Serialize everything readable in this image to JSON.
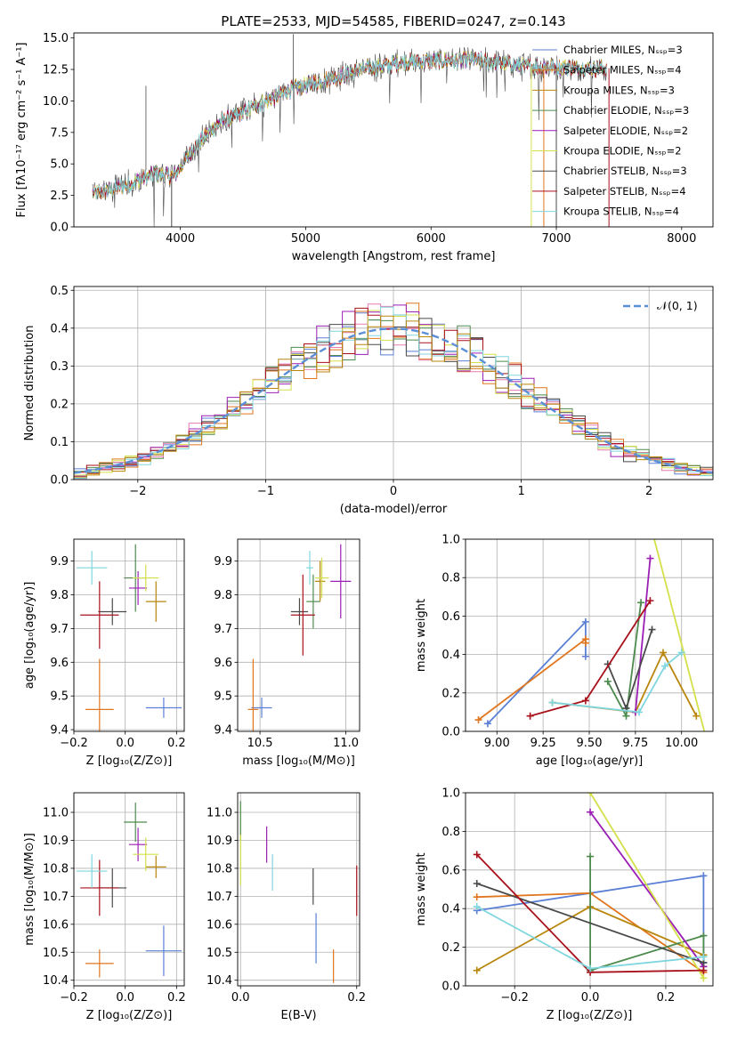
{
  "colors": {
    "palette": [
      "#5b7fd6",
      "#e0761e",
      "#b8860b",
      "#4e8b4e",
      "#9b1fb5",
      "#d4e04a",
      "#4a4a4a",
      "#a8111b",
      "#7fd6de"
    ],
    "midpalette": [
      "#5b7fd6",
      "#e0761e",
      "#4e8b4e",
      "#9b1fb5",
      "#e87ab0",
      "#d4e04a",
      "#4a4a4a",
      "#a8111b",
      "#7fd6de",
      "#b8860b"
    ]
  },
  "chart_data": [
    {
      "type": "line",
      "title": "PLATE=2533, MJD=54585, FIBERID=0247, z=0.143",
      "xlabel": "wavelength [Angstrom, rest frame]",
      "ylabel": "Flux [fλ10⁻¹⁷ erg cm⁻² s⁻¹ A⁻¹]",
      "xlim": [
        3150,
        8250
      ],
      "ylim": [
        0,
        15.4
      ],
      "xticks": [
        "4000",
        "5000",
        "6000",
        "7000",
        "8000"
      ],
      "yticks": [
        "0.0",
        "2.5",
        "5.0",
        "7.5",
        "10.0",
        "12.5",
        "15.0"
      ],
      "xtick_values": [
        4000,
        5000,
        6000,
        7000,
        8000
      ],
      "ytick_values": [
        0,
        2.5,
        5,
        7.5,
        10,
        12.5,
        15
      ],
      "legend_position": "top-right",
      "series": [
        {
          "name": "Chabrier MILES, Nₛₛₚ=3"
        },
        {
          "name": "Salpeter MILES, Nₛₛₚ=4"
        },
        {
          "name": "Kroupa MILES, Nₛₛₚ=3"
        },
        {
          "name": "Chabrier ELODIE, Nₛₛₚ=3"
        },
        {
          "name": "Salpeter ELODIE, Nₛₛₚ=2"
        },
        {
          "name": "Kroupa ELODIE, Nₛₛₚ=2"
        },
        {
          "name": "Chabrier STELIB, Nₛₛₚ=3"
        },
        {
          "name": "Salpeter STELIB, Nₛₛₚ=4"
        },
        {
          "name": "Kroupa STELIB, Nₛₛₚ=4"
        }
      ],
      "continuum": {
        "x": [
          3300,
          3500,
          3800,
          3950,
          4100,
          4300,
          4600,
          4900,
          5200,
          5500,
          5800,
          6100,
          6400,
          6800,
          7000,
          7300
        ],
        "y": [
          2.6,
          3.1,
          4.2,
          4.0,
          6.2,
          8.2,
          9.6,
          11.0,
          11.8,
          12.6,
          13.1,
          13.2,
          13.2,
          12.7,
          12.7,
          12.6
        ]
      }
    },
    {
      "type": "bar",
      "xlabel": "(data-model)/error",
      "ylabel": "Normed distribution",
      "xlim": [
        -2.5,
        2.5
      ],
      "ylim": [
        0,
        0.51
      ],
      "xticks": [
        "−2",
        "−1",
        "0",
        "1",
        "2"
      ],
      "yticks": [
        "0.0",
        "0.1",
        "0.2",
        "0.3",
        "0.4",
        "0.5"
      ],
      "xtick_values": [
        -2,
        -1,
        0,
        1,
        2
      ],
      "ytick_values": [
        0,
        0.1,
        0.2,
        0.3,
        0.4,
        0.5
      ],
      "grid": true,
      "legend_position": "top-right",
      "series": [
        {
          "name": "𝒩(0, 1)",
          "type": "gaussian",
          "mean": 0,
          "sigma": 1
        }
      ],
      "bin_width": 0.1
    },
    {
      "type": "scatter",
      "xlabel": "Z [log₁₀(Z/Z⊙)]",
      "ylabel": "age  [log₁₀(age/yr)]",
      "xlim": [
        -0.2,
        0.23
      ],
      "ylim": [
        9.395,
        9.965
      ],
      "xticks": [
        "−0.2",
        "0.0",
        "0.2"
      ],
      "yticks": [
        "9.4",
        "9.5",
        "9.6",
        "9.7",
        "9.8",
        "9.9"
      ],
      "xtick_values": [
        -0.2,
        0,
        0.2
      ],
      "ytick_values": [
        9.4,
        9.5,
        9.6,
        9.7,
        9.8,
        9.9
      ],
      "grid": true,
      "points": [
        {
          "x": 0.15,
          "y": 9.465,
          "xerr": 0.07,
          "yerr": 0.03,
          "c": 0
        },
        {
          "x": -0.1,
          "y": 9.46,
          "xerr": 0.055,
          "yerr": 0.15,
          "c": 1
        },
        {
          "x": 0.12,
          "y": 9.78,
          "xerr": 0.04,
          "yerr": 0.06,
          "c": 2
        },
        {
          "x": 0.04,
          "y": 9.85,
          "xerr": 0.045,
          "yerr": 0.1,
          "c": 3
        },
        {
          "x": 0.05,
          "y": 9.82,
          "xerr": 0.035,
          "yerr": 0.05,
          "c": 4
        },
        {
          "x": 0.08,
          "y": 9.85,
          "xerr": 0.05,
          "yerr": 0.04,
          "c": 5
        },
        {
          "x": -0.05,
          "y": 9.75,
          "xerr": 0.055,
          "yerr": 0.04,
          "c": 6
        },
        {
          "x": -0.1,
          "y": 9.74,
          "xerr": 0.075,
          "yerr": 0.1,
          "c": 7
        },
        {
          "x": -0.13,
          "y": 9.88,
          "xerr": 0.06,
          "yerr": 0.05,
          "c": 8
        }
      ]
    },
    {
      "type": "scatter",
      "xlabel": "mass [log₁₀(M/M⊙)]",
      "xlim": [
        10.37,
        11.08
      ],
      "ylim": [
        9.395,
        9.965
      ],
      "xticks": [
        "10.5",
        "11.0"
      ],
      "yticks": [
        "9.4",
        "9.5",
        "9.6",
        "9.7",
        "9.8",
        "9.9"
      ],
      "xtick_values": [
        10.5,
        11.0
      ],
      "ytick_values": [
        9.4,
        9.5,
        9.6,
        9.7,
        9.8,
        9.9
      ],
      "grid": true,
      "points": [
        {
          "x": 10.51,
          "y": 9.465,
          "xerr": 0.06,
          "yerr": 0.03,
          "c": 0
        },
        {
          "x": 10.46,
          "y": 9.46,
          "xerr": 0.03,
          "yerr": 0.15,
          "c": 1
        },
        {
          "x": 10.85,
          "y": 9.84,
          "xerr": 0.03,
          "yerr": 0.06,
          "c": 2
        },
        {
          "x": 10.81,
          "y": 9.78,
          "xerr": 0.04,
          "yerr": 0.08,
          "c": 3
        },
        {
          "x": 10.97,
          "y": 9.84,
          "xerr": 0.06,
          "yerr": 0.11,
          "c": 4
        },
        {
          "x": 10.86,
          "y": 9.85,
          "xerr": 0.04,
          "yerr": 0.06,
          "c": 5
        },
        {
          "x": 10.73,
          "y": 9.75,
          "xerr": 0.05,
          "yerr": 0.04,
          "c": 6
        },
        {
          "x": 10.75,
          "y": 9.74,
          "xerr": 0.07,
          "yerr": 0.12,
          "c": 7
        },
        {
          "x": 10.79,
          "y": 9.88,
          "xerr": 0.02,
          "yerr": 0.05,
          "c": 8
        }
      ]
    },
    {
      "type": "line",
      "xlabel": "age  [log₁₀(age/yr)]",
      "ylabel": "mass weight",
      "xlim": [
        8.83,
        10.17
      ],
      "ylim": [
        0,
        1.0
      ],
      "xticks": [
        "9.00",
        "9.25",
        "9.50",
        "9.75",
        "10.00"
      ],
      "yticks": [
        "0.0",
        "0.2",
        "0.4",
        "0.6",
        "0.8",
        "1.0"
      ],
      "xtick_values": [
        9.0,
        9.25,
        9.5,
        9.75,
        10.0
      ],
      "ytick_values": [
        0,
        0.2,
        0.4,
        0.6,
        0.8,
        1.0
      ],
      "grid": true,
      "series": [
        {
          "c": 0,
          "x": [
            8.95,
            9.48,
            9.48
          ],
          "y": [
            0.04,
            0.57,
            0.39
          ]
        },
        {
          "c": 1,
          "x": [
            8.9,
            9.48,
            9.48
          ],
          "y": [
            0.06,
            0.48,
            0.46
          ]
        },
        {
          "c": 9,
          "x": [
            9.3,
            9.75,
            9.9,
            10.08
          ],
          "y": [
            0.15,
            0.1,
            0.41,
            0.08
          ]
        },
        {
          "c": 2,
          "x": [
            9.6,
            9.7,
            9.78
          ],
          "y": [
            0.26,
            0.08,
            0.67
          ]
        },
        {
          "c": 3,
          "x": [
            9.75,
            9.83
          ],
          "y": [
            0.1,
            0.9
          ]
        },
        {
          "c": 5,
          "x": [
            9.83,
            10.15
          ],
          "y": [
            1.08,
            -0.1
          ]
        },
        {
          "c": 6,
          "x": [
            9.6,
            9.7,
            9.84
          ],
          "y": [
            0.35,
            0.12,
            0.53
          ]
        },
        {
          "c": 7,
          "x": [
            9.18,
            9.48,
            9.83
          ],
          "y": [
            0.08,
            0.16,
            0.68
          ]
        },
        {
          "c": 8,
          "x": [
            9.3,
            9.77,
            9.91,
            10.0
          ],
          "y": [
            0.15,
            0.1,
            0.34,
            0.41
          ]
        }
      ]
    },
    {
      "type": "scatter",
      "xlabel": "Z [log₁₀(Z/Z⊙)]",
      "ylabel": "mass [log₁₀(M/M⊙)]",
      "xlim": [
        -0.2,
        0.23
      ],
      "ylim": [
        10.38,
        11.07
      ],
      "xticks": [
        "−0.2",
        "0.0",
        "0.2"
      ],
      "yticks": [
        "10.4",
        "10.5",
        "10.6",
        "10.7",
        "10.8",
        "10.9",
        "11.0"
      ],
      "xtick_values": [
        -0.2,
        0,
        0.2
      ],
      "ytick_values": [
        10.4,
        10.5,
        10.6,
        10.7,
        10.8,
        10.9,
        11.0
      ],
      "grid": true,
      "points": [
        {
          "x": 0.15,
          "y": 10.505,
          "xerr": 0.07,
          "yerr": 0.09,
          "c": 0
        },
        {
          "x": -0.1,
          "y": 10.46,
          "xerr": 0.055,
          "yerr": 0.05,
          "c": 1
        },
        {
          "x": 0.12,
          "y": 10.805,
          "xerr": 0.04,
          "yerr": 0.04,
          "c": 2
        },
        {
          "x": 0.04,
          "y": 10.965,
          "xerr": 0.045,
          "yerr": 0.07,
          "c": 3
        },
        {
          "x": 0.05,
          "y": 10.885,
          "xerr": 0.035,
          "yerr": 0.06,
          "c": 4
        },
        {
          "x": 0.08,
          "y": 10.85,
          "xerr": 0.05,
          "yerr": 0.06,
          "c": 5
        },
        {
          "x": -0.05,
          "y": 10.73,
          "xerr": 0.055,
          "yerr": 0.07,
          "c": 6
        },
        {
          "x": -0.1,
          "y": 10.73,
          "xerr": 0.075,
          "yerr": 0.1,
          "c": 7
        },
        {
          "x": -0.13,
          "y": 10.79,
          "xerr": 0.06,
          "yerr": 0.06,
          "c": 8
        }
      ]
    },
    {
      "type": "scatter",
      "xlabel": "E(B-V)",
      "xlim": [
        -0.005,
        0.205
      ],
      "ylim": [
        10.38,
        11.07
      ],
      "xticks": [
        "0.0",
        "0.2"
      ],
      "yticks": [
        "10.4",
        "10.5",
        "10.6",
        "10.7",
        "10.8",
        "10.9",
        "11.0"
      ],
      "xtick_values": [
        0,
        0.2
      ],
      "ytick_values": [
        10.4,
        10.5,
        10.6,
        10.7,
        10.8,
        10.9,
        11.0
      ],
      "grid": true,
      "points": [
        {
          "x": 0.13,
          "y": 10.55,
          "yerr": 0.09,
          "c": 0
        },
        {
          "x": 0.16,
          "y": 10.45,
          "yerr": 0.06,
          "c": 1
        },
        {
          "x": 0.2,
          "y": 10.72,
          "yerr": 0.09,
          "c": 7
        },
        {
          "x": 0.0,
          "y": 10.97,
          "yerr": 0.07,
          "c": 3
        },
        {
          "x": 0.045,
          "y": 10.885,
          "yerr": 0.065,
          "c": 4
        },
        {
          "x": 0.0,
          "y": 10.83,
          "yerr": 0.09,
          "c": 5
        },
        {
          "x": 0.125,
          "y": 10.735,
          "yerr": 0.065,
          "c": 6
        },
        {
          "x": 0.055,
          "y": 10.785,
          "yerr": 0.065,
          "c": 8
        }
      ]
    },
    {
      "type": "line",
      "xlabel": "Z [log₁₀(Z/Z⊙)]",
      "ylabel": "mass weight",
      "xlim": [
        -0.33,
        0.325
      ],
      "ylim": [
        0,
        1.0
      ],
      "xticks": [
        "−0.2",
        "0.0",
        "0.2"
      ],
      "yticks": [
        "0.0",
        "0.2",
        "0.4",
        "0.6",
        "0.8",
        "1.0"
      ],
      "xtick_values": [
        -0.2,
        0,
        0.2
      ],
      "ytick_values": [
        0,
        0.2,
        0.4,
        0.6,
        0.8,
        1.0
      ],
      "grid": true,
      "series": [
        {
          "c": 0,
          "x": [
            -0.3,
            0.0,
            0.3,
            0.3
          ],
          "y": [
            0.39,
            0.48,
            0.57,
            0.12
          ]
        },
        {
          "c": 1,
          "x": [
            -0.3,
            0.0,
            0.3
          ],
          "y": [
            0.46,
            0.48,
            0.07
          ]
        },
        {
          "c": 9,
          "x": [
            -0.3,
            0.0,
            0.3
          ],
          "y": [
            0.08,
            0.41,
            0.16
          ]
        },
        {
          "c": 2,
          "x": [
            0.0,
            0.0,
            0.3,
            0.3
          ],
          "y": [
            0.67,
            0.08,
            0.26,
            0.1
          ]
        },
        {
          "c": 3,
          "x": [
            0.0,
            0.3
          ],
          "y": [
            0.9,
            0.1
          ]
        },
        {
          "c": 5,
          "x": [
            0.0,
            0.3
          ],
          "y": [
            1.0,
            0.04
          ]
        },
        {
          "c": 6,
          "x": [
            -0.3,
            0.3
          ],
          "y": [
            0.53,
            0.12
          ]
        },
        {
          "c": 7,
          "x": [
            -0.3,
            0.0,
            0.3
          ],
          "y": [
            0.68,
            0.07,
            0.08
          ]
        },
        {
          "c": 8,
          "x": [
            -0.3,
            0.0,
            0.3
          ],
          "y": [
            0.41,
            0.09,
            0.15
          ]
        }
      ]
    }
  ]
}
